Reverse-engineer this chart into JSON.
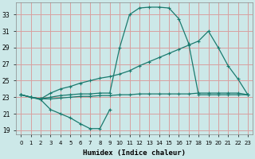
{
  "xlabel": "Humidex (Indice chaleur)",
  "bg_color": "#cce8e8",
  "grid_color": "#d8a0a0",
  "line_color": "#1a7a6e",
  "xlim": [
    -0.5,
    23.5
  ],
  "ylim": [
    18.5,
    34.5
  ],
  "xticks": [
    0,
    1,
    2,
    3,
    4,
    5,
    6,
    7,
    8,
    9,
    10,
    11,
    12,
    13,
    14,
    15,
    16,
    17,
    18,
    19,
    20,
    21,
    22,
    23
  ],
  "yticks": [
    19,
    21,
    23,
    25,
    27,
    29,
    31,
    33
  ],
  "line1_x": [
    0,
    1,
    2,
    3,
    4,
    5,
    6,
    7,
    8,
    9
  ],
  "line1_y": [
    23.3,
    23.0,
    22.7,
    21.5,
    21.0,
    20.5,
    19.8,
    19.2,
    19.2,
    21.5
  ],
  "line2_x": [
    0,
    1,
    2,
    3,
    4,
    5,
    6,
    7,
    8,
    9,
    10,
    11,
    12,
    13,
    14,
    15,
    16,
    17,
    18,
    19,
    20,
    21,
    22,
    23
  ],
  "line2_y": [
    23.3,
    23.0,
    22.8,
    23.5,
    24.0,
    24.3,
    24.7,
    25.0,
    25.3,
    25.5,
    25.8,
    26.2,
    26.8,
    27.3,
    27.8,
    28.3,
    28.8,
    29.3,
    29.8,
    31.0,
    29.0,
    26.8,
    25.2,
    23.3
  ],
  "line3_x": [
    0,
    1,
    2,
    3,
    4,
    5,
    6,
    7,
    8,
    9,
    10,
    11,
    12,
    13,
    14,
    15,
    16,
    17,
    18,
    19,
    20,
    21,
    22,
    23
  ],
  "line3_y": [
    23.3,
    23.0,
    22.8,
    23.0,
    23.2,
    23.3,
    23.4,
    23.4,
    23.5,
    23.5,
    29.0,
    33.0,
    33.8,
    33.9,
    33.9,
    33.8,
    32.5,
    29.5,
    23.3,
    23.3,
    23.3,
    23.3,
    23.3,
    23.3
  ],
  "line4_x": [
    0,
    1,
    2,
    3,
    4,
    5,
    6,
    7,
    8,
    9,
    10,
    11,
    12,
    13,
    14,
    15,
    16,
    17,
    18,
    19,
    20,
    21,
    22,
    23
  ],
  "line4_y": [
    23.3,
    23.0,
    22.8,
    22.8,
    22.9,
    23.0,
    23.1,
    23.1,
    23.2,
    23.2,
    23.3,
    23.3,
    23.4,
    23.4,
    23.4,
    23.4,
    23.4,
    23.4,
    23.5,
    23.5,
    23.5,
    23.5,
    23.5,
    23.3
  ]
}
